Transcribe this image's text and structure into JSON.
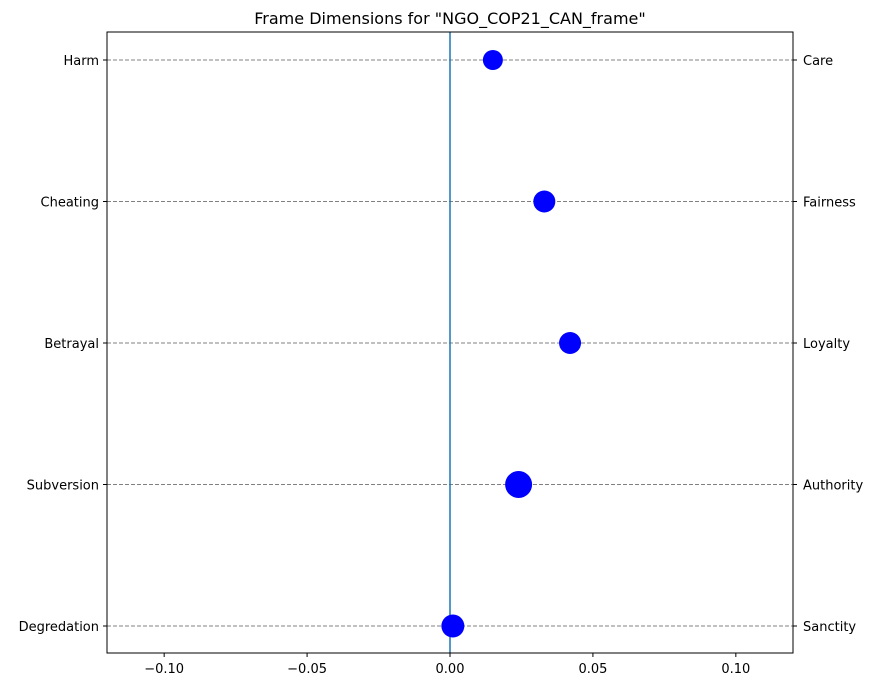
{
  "chart_data": {
    "type": "scatter",
    "title": "Frame Dimensions for \"NGO_COP21_CAN_frame\"",
    "xlabel": "",
    "ylabel": "",
    "xlim": [
      -0.12,
      0.12
    ],
    "x_ticks": [
      -0.1,
      -0.05,
      0.0,
      0.05,
      0.1
    ],
    "x_tick_labels": [
      "−0.10",
      "−0.05",
      "0.00",
      "0.05",
      "0.10"
    ],
    "grid": "horizontal dashed at each category",
    "left_labels": [
      "Harm",
      "Cheating",
      "Betrayal",
      "Subversion",
      "Degredation"
    ],
    "right_labels": [
      "Care",
      "Fairness",
      "Loyalty",
      "Authority",
      "Sanctity"
    ],
    "points": [
      {
        "left": "Harm",
        "right": "Care",
        "x": 0.015,
        "size": 1.0
      },
      {
        "left": "Cheating",
        "right": "Fairness",
        "x": 0.033,
        "size": 1.1
      },
      {
        "left": "Betrayal",
        "right": "Loyalty",
        "x": 0.042,
        "size": 1.1
      },
      {
        "left": "Subversion",
        "right": "Authority",
        "x": 0.024,
        "size": 1.35
      },
      {
        "left": "Degredation",
        "right": "Sanctity",
        "x": 0.001,
        "size": 1.15
      }
    ],
    "vline_x": 0.0,
    "colors": {
      "points": "#0000ff",
      "vline": "#1f77b4",
      "grid": "#808080"
    }
  }
}
